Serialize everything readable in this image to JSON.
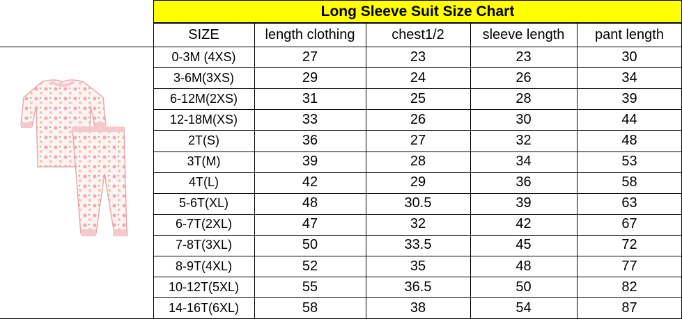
{
  "title": "Long Sleeve Suit Size Chart",
  "headers": [
    "SIZE",
    "length clothing",
    "chest1/2",
    "sleeve length",
    "pant length"
  ],
  "rows": [
    [
      "0-3M  (4XS)",
      "27",
      "23",
      "23",
      "30"
    ],
    [
      "3-6M(3XS)",
      "29",
      "24",
      "26",
      "34"
    ],
    [
      "6-12M(2XS)",
      "31",
      "25",
      "28",
      "39"
    ],
    [
      "12-18M(XS)",
      "33",
      "26",
      "30",
      "44"
    ],
    [
      "2T(S)",
      "36",
      "27",
      "32",
      "48"
    ],
    [
      "3T(M)",
      "39",
      "28",
      "34",
      "53"
    ],
    [
      "4T(L)",
      "42",
      "29",
      "36",
      "58"
    ],
    [
      "5-6T(XL)",
      "48",
      "30.5",
      "39",
      "63"
    ],
    [
      "6-7T(2XL)",
      "47",
      "32",
      "42",
      "67"
    ],
    [
      "7-8T(3XL)",
      "50",
      "33.5",
      "45",
      "72"
    ],
    [
      "8-9T(4XL)",
      "52",
      "35",
      "48",
      "77"
    ],
    [
      "10-12T(5XL)",
      "55",
      "36.5",
      "50",
      "82"
    ],
    [
      "14-16T(6XL)",
      "58",
      "38",
      "54",
      "87"
    ]
  ],
  "colors": {
    "title_bg": "#ffff00",
    "garment": "#f4c9cc"
  },
  "image": "floral-pajama-set-illustration"
}
